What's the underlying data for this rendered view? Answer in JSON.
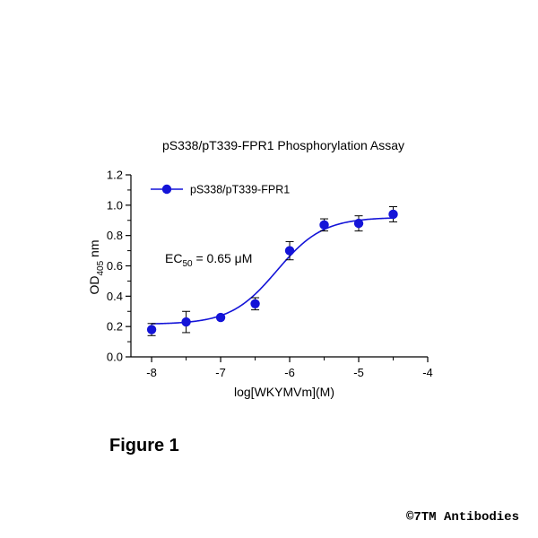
{
  "chart_data": {
    "type": "scatter",
    "title": "pS338/pT339-FPR1 Phosphorylation Assay",
    "xlabel": "log[WKYMVm](M)",
    "ylabel_main": "OD",
    "ylabel_sub": "405",
    "ylabel_unit": " nm",
    "xlim": [
      -8.3,
      -4
    ],
    "ylim": [
      0,
      1.2
    ],
    "x_ticks": [
      -8,
      -7,
      -6,
      -5,
      -4
    ],
    "x_minor_ticks": [
      -7.5,
      -6.5,
      -5.5,
      -4.5
    ],
    "x_tick_labels": [
      "-8",
      "-7",
      "-6",
      "-5",
      "-4"
    ],
    "y_ticks": [
      0,
      0.2,
      0.4,
      0.6,
      0.8,
      1.0,
      1.2
    ],
    "y_tick_labels": [
      "0.0",
      "0.2",
      "0.4",
      "0.6",
      "0.8",
      "1.0",
      "1.2"
    ],
    "grid": false,
    "legend_position": "top-left",
    "series": [
      {
        "name": "pS338/pT339-FPR1",
        "color": "#1414d8",
        "marker": "circle",
        "x": [
          -8,
          -7.5,
          -7,
          -6.5,
          -6,
          -5.5,
          -5,
          -4.5
        ],
        "y": [
          0.18,
          0.23,
          0.26,
          0.35,
          0.7,
          0.87,
          0.88,
          0.94
        ],
        "error": [
          0.04,
          0.07,
          0.0,
          0.04,
          0.06,
          0.04,
          0.05,
          0.05
        ],
        "fit": {
          "model": "four-parameter logistic",
          "bottom": 0.215,
          "top": 0.92,
          "log_ec50": -6.187,
          "hill": 1.3
        }
      }
    ],
    "annotation": {
      "prefix": "EC",
      "sub": "50",
      "suffix": " = 0.65 μM"
    }
  },
  "caption": "Figure 1",
  "copyright": "©7TM Antibodies"
}
